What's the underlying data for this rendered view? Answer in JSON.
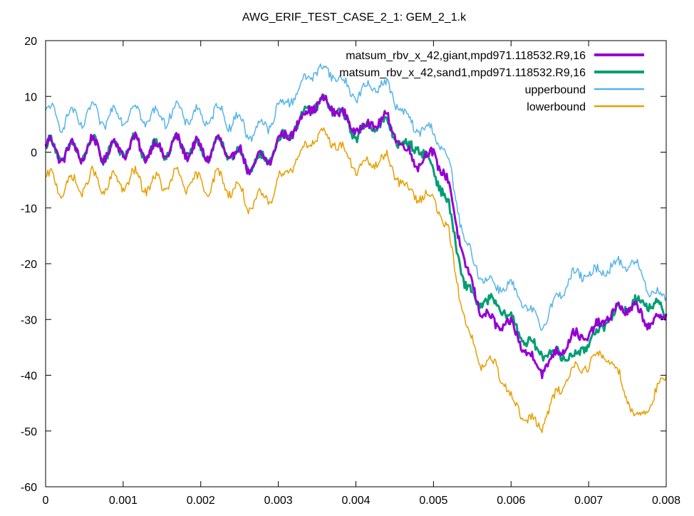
{
  "chart_data": {
    "type": "line",
    "title": "AWG_ERIF_TEST_CASE_2_1: GEM_2_1.k",
    "xlabel": "",
    "ylabel": "",
    "xlim": [
      0,
      0.008
    ],
    "ylim": [
      -60,
      20
    ],
    "x_ticks": [
      0,
      0.001,
      0.002,
      0.003,
      0.004,
      0.005,
      0.006,
      0.007,
      0.008
    ],
    "x_tick_labels": [
      "0",
      "0.001",
      "0.002",
      "0.003",
      "0.004",
      "0.005",
      "0.006",
      "0.007",
      "0.008"
    ],
    "y_ticks": [
      20,
      10,
      0,
      -10,
      -20,
      -30,
      -40,
      -50,
      -60
    ],
    "y_tick_labels": [
      "20",
      "10",
      "0",
      "-10",
      "-20",
      "-30",
      "-40",
      "-50",
      "-60"
    ],
    "grid": false,
    "legend_position": "top-right",
    "series": [
      {
        "name": "matsum_rbv_x_42,giant,mpd971.118532.R9,16",
        "color": "#9400d3",
        "x": [
          0,
          0.0002,
          0.0004,
          0.0006,
          0.0008,
          0.001,
          0.0012,
          0.0014,
          0.0016,
          0.0018,
          0.002,
          0.0022,
          0.0024,
          0.0026,
          0.0028,
          0.003,
          0.0032,
          0.0034,
          0.0036,
          0.0038,
          0.004,
          0.0042,
          0.0044,
          0.0046,
          0.0048,
          0.005,
          0.0052,
          0.0054,
          0.0056,
          0.0058,
          0.006,
          0.0062,
          0.0064,
          0.0066,
          0.0068,
          0.007,
          0.0072,
          0.0074,
          0.0076,
          0.0078,
          0.008
        ],
        "y": [
          1,
          0,
          0,
          1,
          0,
          1,
          1,
          0,
          1,
          1,
          0,
          1,
          0,
          -2,
          -2,
          2,
          4,
          8,
          9,
          7,
          4,
          5,
          6,
          1,
          -2,
          0,
          -6,
          -20,
          -28,
          -31,
          -31,
          -36,
          -39,
          -36,
          -33,
          -33,
          -30,
          -28,
          -28,
          -31,
          -29
        ]
      },
      {
        "name": "matsum_rbv_x_42,sand1,mpd971.118532.R9,16",
        "color": "#009e73",
        "x": [
          0,
          0.0002,
          0.0004,
          0.0006,
          0.0008,
          0.001,
          0.0012,
          0.0014,
          0.0016,
          0.0018,
          0.002,
          0.0022,
          0.0024,
          0.0026,
          0.0028,
          0.003,
          0.0032,
          0.0034,
          0.0036,
          0.0038,
          0.004,
          0.0042,
          0.0044,
          0.0046,
          0.0048,
          0.005,
          0.0052,
          0.0054,
          0.0056,
          0.0058,
          0.006,
          0.0062,
          0.0064,
          0.0066,
          0.0068,
          0.007,
          0.0072,
          0.0074,
          0.0076,
          0.0078,
          0.008
        ],
        "y": [
          1,
          0,
          0,
          1,
          0,
          1,
          1,
          0,
          1,
          1,
          0,
          1,
          0,
          -2,
          -2,
          2,
          4,
          8,
          9,
          7,
          3,
          5,
          5,
          1,
          1,
          -3,
          -10,
          -24,
          -27,
          -27,
          -30,
          -34,
          -36,
          -36,
          -37,
          -34,
          -31,
          -28,
          -27,
          -27,
          -29
        ]
      },
      {
        "name": "upperbound",
        "color": "#56b4e9",
        "x": [
          0,
          0.0002,
          0.0004,
          0.0006,
          0.0008,
          0.001,
          0.0012,
          0.0014,
          0.0016,
          0.0018,
          0.002,
          0.0022,
          0.0024,
          0.0026,
          0.0028,
          0.003,
          0.0032,
          0.0034,
          0.0036,
          0.0038,
          0.004,
          0.0042,
          0.0044,
          0.0046,
          0.0048,
          0.005,
          0.0052,
          0.0054,
          0.0056,
          0.0058,
          0.006,
          0.0062,
          0.0064,
          0.0066,
          0.0068,
          0.007,
          0.0072,
          0.0074,
          0.0076,
          0.0078,
          0.008
        ],
        "y": [
          7,
          6,
          6,
          7,
          6,
          7,
          7,
          6,
          7,
          7,
          6,
          7,
          6,
          4,
          4,
          8,
          10,
          14,
          15,
          13,
          10,
          12,
          12,
          7,
          4,
          4,
          -2,
          -16,
          -22,
          -24,
          -24,
          -28,
          -31,
          -26,
          -22,
          -22,
          -21,
          -20,
          -20,
          -25,
          -26
        ]
      },
      {
        "name": "lowerbound",
        "color": "#e69f00",
        "x": [
          0,
          0.0002,
          0.0004,
          0.0006,
          0.0008,
          0.001,
          0.0012,
          0.0014,
          0.0016,
          0.0018,
          0.002,
          0.0022,
          0.0024,
          0.0026,
          0.0028,
          0.003,
          0.0032,
          0.0034,
          0.0036,
          0.0038,
          0.004,
          0.0042,
          0.0044,
          0.0046,
          0.0048,
          0.005,
          0.0052,
          0.0054,
          0.0056,
          0.0058,
          0.006,
          0.0062,
          0.0064,
          0.0066,
          0.0068,
          0.007,
          0.0072,
          0.0074,
          0.0076,
          0.0078,
          0.008
        ],
        "y": [
          -5,
          -6,
          -6,
          -5,
          -6,
          -5,
          -5,
          -6,
          -5,
          -5,
          -6,
          -5,
          -6,
          -9,
          -9,
          -5,
          -2,
          2,
          3,
          1,
          -3,
          -2,
          -1,
          -6,
          -8,
          -8,
          -15,
          -30,
          -38,
          -38,
          -44,
          -48,
          -49,
          -43,
          -39,
          -38,
          -36,
          -40,
          -48,
          -45,
          -40
        ]
      }
    ]
  }
}
